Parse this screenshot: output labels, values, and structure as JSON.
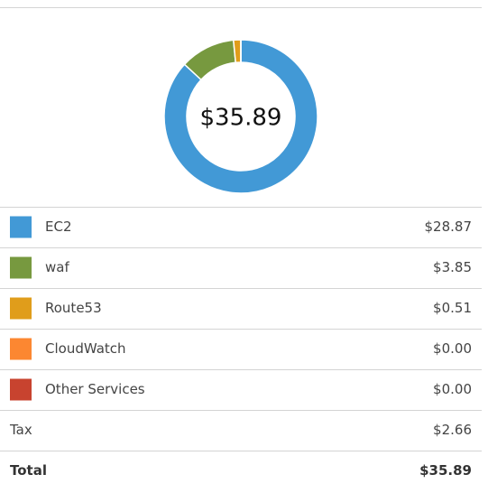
{
  "chart_data": {
    "type": "pie",
    "center_label": "$35.89",
    "categories": [
      "EC2",
      "waf",
      "Route53",
      "CloudWatch",
      "Other Services"
    ],
    "values": [
      28.87,
      3.85,
      0.51,
      0.0,
      0.0
    ],
    "value_labels": [
      "$28.87",
      "$3.85",
      "$0.51",
      "$0.00",
      "$0.00"
    ],
    "colors": [
      "#4299d6",
      "#77993f",
      "#e09d1b",
      "#fc8731",
      "#c8432f"
    ]
  },
  "summary_rows": [
    {
      "label": "Tax",
      "amount": "$2.66"
    },
    {
      "label": "Total",
      "amount": "$35.89"
    }
  ]
}
